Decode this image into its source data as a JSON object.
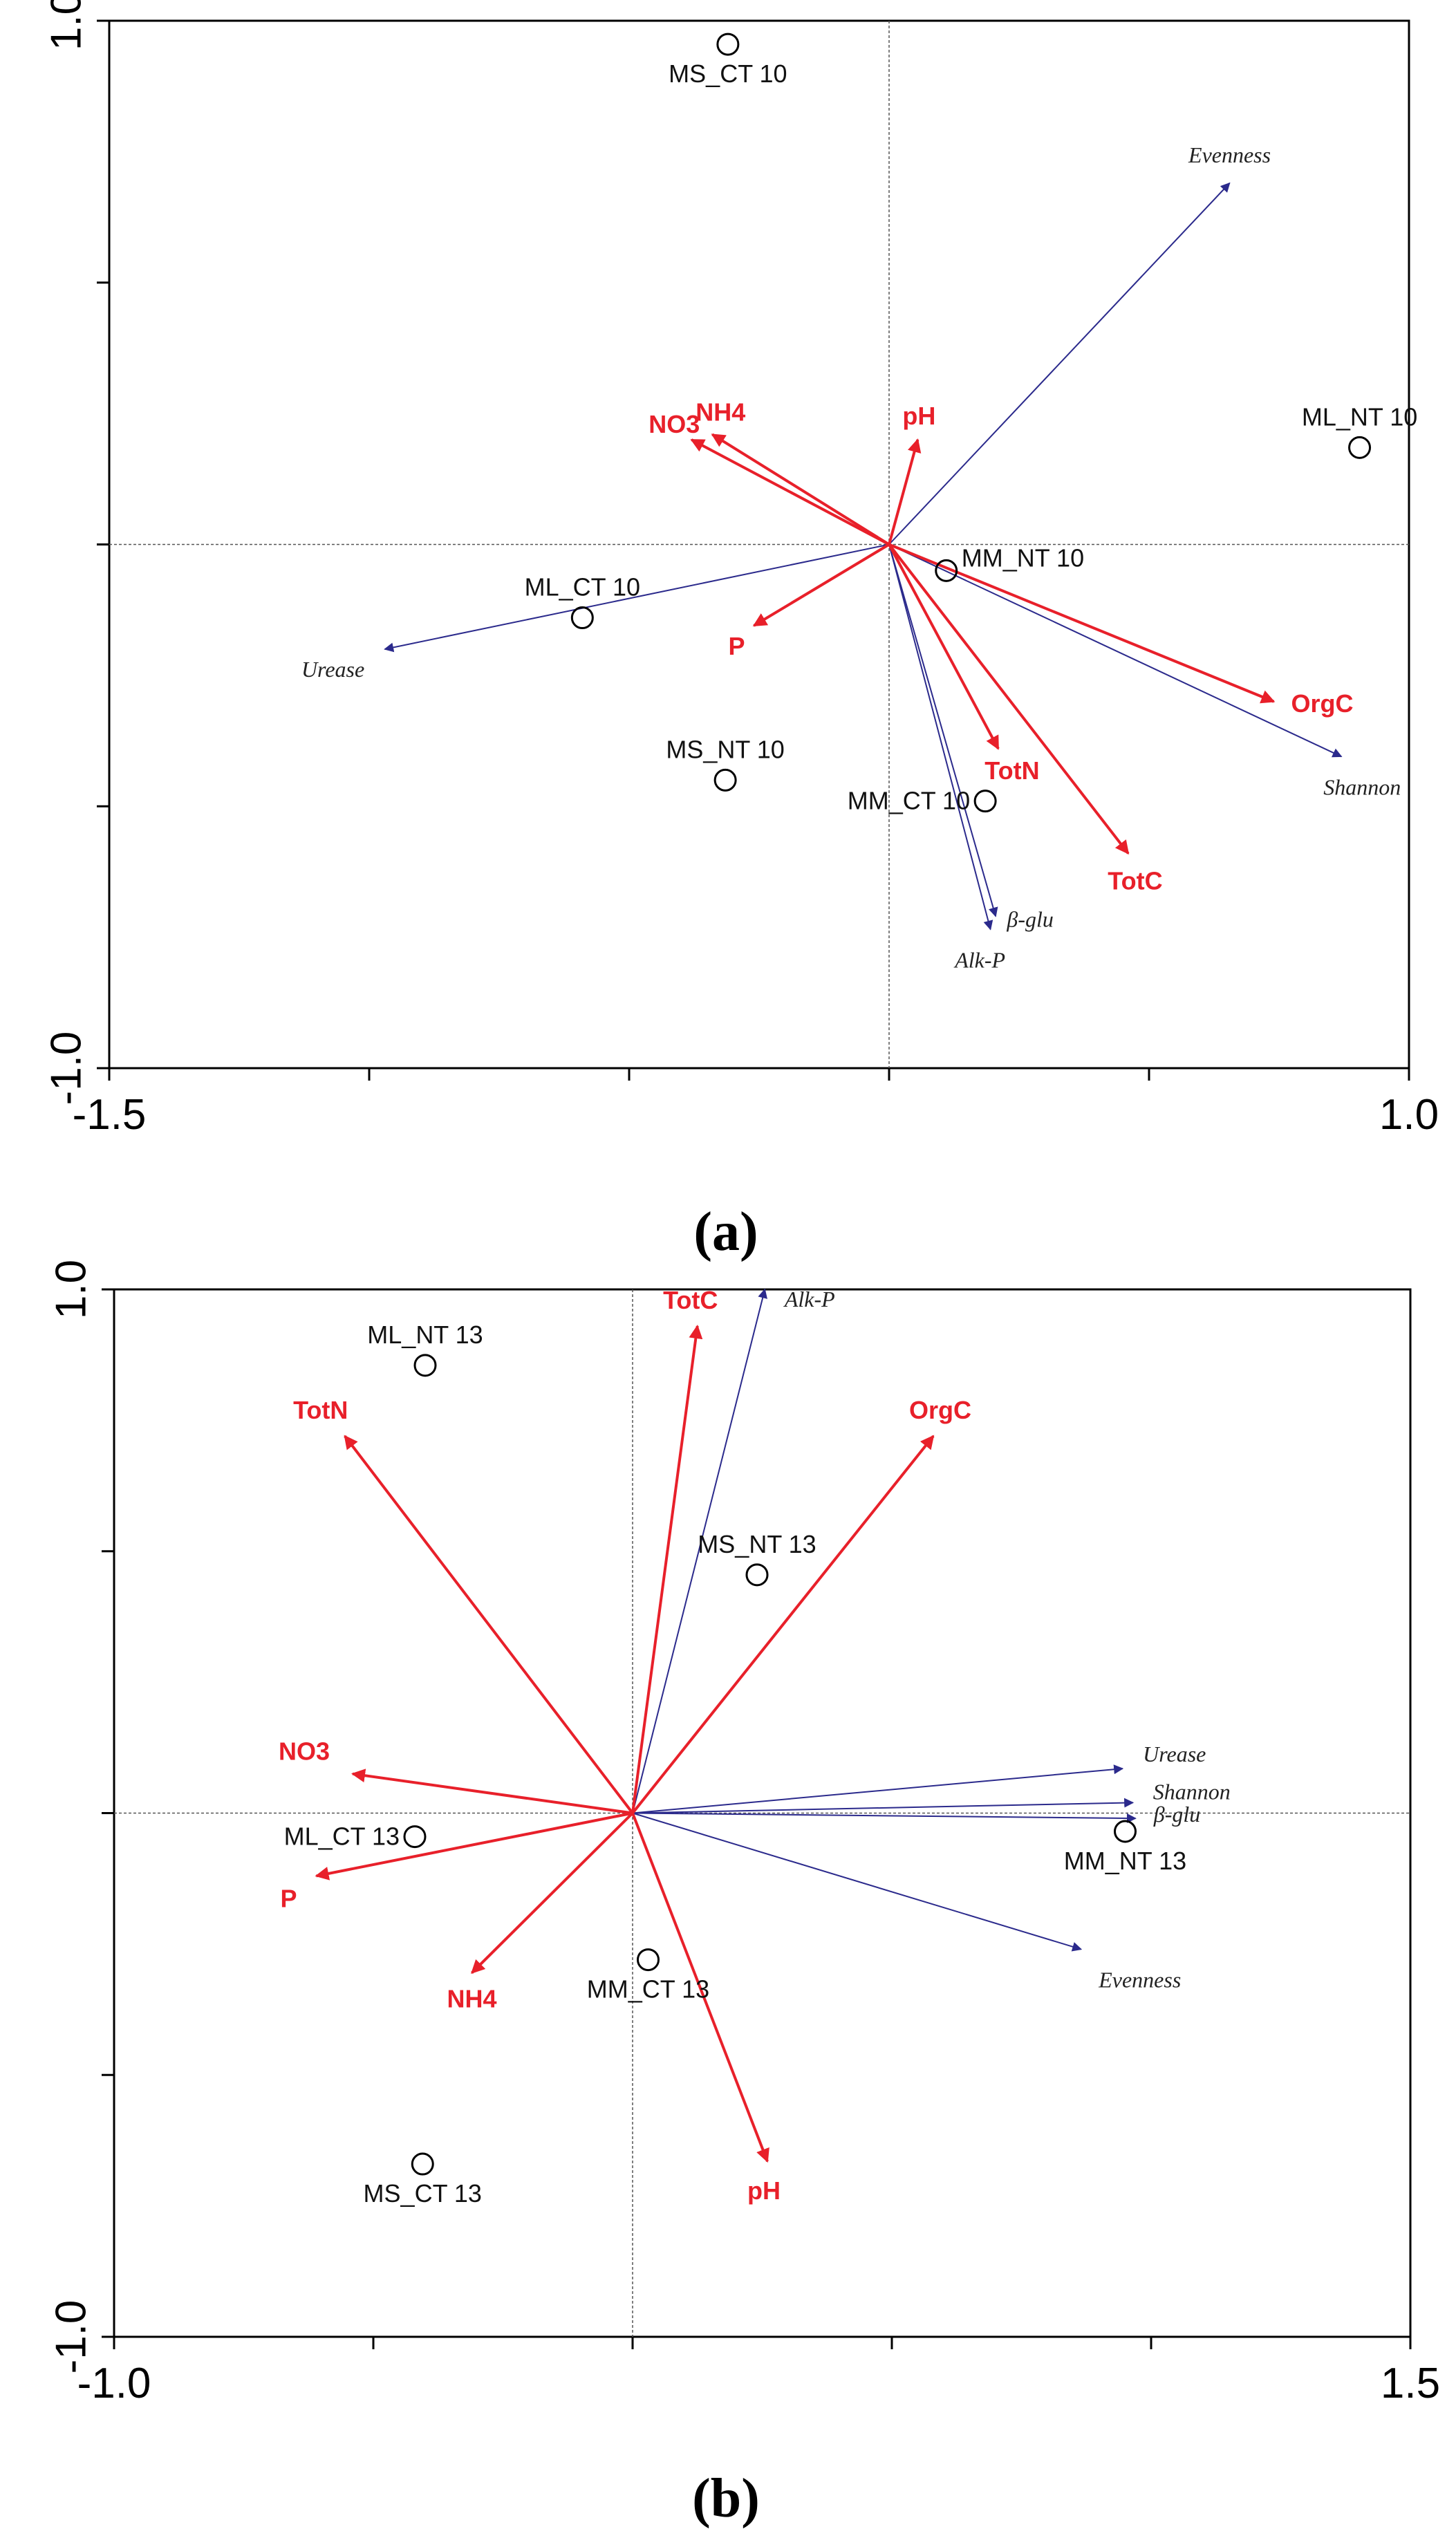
{
  "colors": {
    "env": "#e8202a",
    "bio": "#2b2a8c",
    "sample": "#000000"
  },
  "chart_data": [
    {
      "type": "scatter",
      "subtype": "ordination-biplot",
      "caption": "(a)",
      "caption_letter": "a",
      "xlim": [
        -1.5,
        1.0
      ],
      "ylim": [
        -1.0,
        1.0
      ],
      "xticks": [
        -1.5,
        -1.0,
        -0.5,
        0.0,
        0.5,
        1.0
      ],
      "yticks": [
        -1.0,
        -0.5,
        0.0,
        0.5,
        1.0
      ],
      "x_tick_labels": [
        {
          "value": -1.5,
          "text": "-1.5"
        },
        {
          "value": 1.0,
          "text": "1.0"
        }
      ],
      "y_tick_labels": [
        {
          "value": 1.0,
          "text": "1.0"
        },
        {
          "value": -1.0,
          "text": "-1.0"
        }
      ],
      "samples": [
        {
          "label": "MS_CT 10",
          "x": -0.31,
          "y": 0.955,
          "label_pos": "below"
        },
        {
          "label": "ML_NT 10",
          "x": 0.905,
          "y": 0.185,
          "label_pos": "above"
        },
        {
          "label": "MM_NT 10",
          "x": 0.11,
          "y": -0.05,
          "label_pos": "right"
        },
        {
          "label": "ML_CT 10",
          "x": -0.59,
          "y": -0.14,
          "label_pos": "above"
        },
        {
          "label": "MS_NT 10",
          "x": -0.315,
          "y": -0.45,
          "label_pos": "above"
        },
        {
          "label": "MM_CT 10",
          "x": 0.185,
          "y": -0.49,
          "label_pos": "left"
        }
      ],
      "env_vectors": [
        {
          "label": "NO3",
          "x": -0.38,
          "y": 0.2,
          "label_dx": -25,
          "label_dy": -10
        },
        {
          "label": "NH4",
          "x": -0.34,
          "y": 0.21,
          "label_dx": 12,
          "label_dy": -20
        },
        {
          "label": "pH",
          "x": 0.055,
          "y": 0.2,
          "label_dx": 2,
          "label_dy": -22
        },
        {
          "label": "P",
          "x": -0.26,
          "y": -0.155,
          "label_dx": -25,
          "label_dy": 42
        },
        {
          "label": "TotN",
          "x": 0.21,
          "y": -0.39,
          "label_dx": 20,
          "label_dy": 44
        },
        {
          "label": "TotC",
          "x": 0.46,
          "y": -0.59,
          "label_dx": 10,
          "label_dy": 52
        },
        {
          "label": "OrgC",
          "x": 0.74,
          "y": -0.3,
          "label_dx": 70,
          "label_dy": 15
        }
      ],
      "bio_vectors": [
        {
          "label": "Evenness",
          "x": 0.655,
          "y": 0.69,
          "label_dx": 0,
          "label_dy": -30
        },
        {
          "label": "Urease",
          "x": -0.97,
          "y": -0.2,
          "label_dx": -75,
          "label_dy": 40
        },
        {
          "label": "Shannon",
          "x": 0.87,
          "y": -0.405,
          "label_dx": 30,
          "label_dy": 55
        },
        {
          "label": "β-glu",
          "x": 0.205,
          "y": -0.71,
          "label_dx": 50,
          "label_dy": 15
        },
        {
          "label": "Alk-P",
          "x": 0.195,
          "y": -0.735,
          "label_dx": -15,
          "label_dy": 55
        }
      ]
    },
    {
      "type": "scatter",
      "subtype": "ordination-biplot",
      "caption": "(b)",
      "caption_letter": "b",
      "xlim": [
        -1.0,
        1.5
      ],
      "ylim": [
        -1.0,
        1.0
      ],
      "xticks": [
        -1.0,
        -0.5,
        0.0,
        0.5,
        1.0,
        1.5
      ],
      "yticks": [
        -1.0,
        -0.5,
        0.0,
        0.5,
        1.0
      ],
      "x_tick_labels": [
        {
          "value": -1.0,
          "text": "-1.0"
        },
        {
          "value": 1.5,
          "text": "1.5"
        }
      ],
      "y_tick_labels": [
        {
          "value": 1.0,
          "text": "1.0"
        },
        {
          "value": -1.0,
          "text": "-1.0"
        }
      ],
      "samples": [
        {
          "label": "ML_NT 13",
          "x": -0.4,
          "y": 0.855,
          "label_pos": "above"
        },
        {
          "label": "MS_NT 13",
          "x": 0.24,
          "y": 0.455,
          "label_pos": "above"
        },
        {
          "label": "ML_CT 13",
          "x": -0.42,
          "y": -0.045,
          "label_pos": "left"
        },
        {
          "label": "MM_NT 13",
          "x": 0.95,
          "y": -0.035,
          "label_pos": "below"
        },
        {
          "label": "MM_CT 13",
          "x": 0.03,
          "y": -0.28,
          "label_pos": "below"
        },
        {
          "label": "MS_CT 13",
          "x": -0.405,
          "y": -0.67,
          "label_pos": "below"
        }
      ],
      "env_vectors": [
        {
          "label": "TotC",
          "x": 0.125,
          "y": 0.93,
          "label_dx": -10,
          "label_dy": -25
        },
        {
          "label": "OrgC",
          "x": 0.58,
          "y": 0.72,
          "label_dx": 10,
          "label_dy": -25
        },
        {
          "label": "TotN",
          "x": -0.555,
          "y": 0.72,
          "label_dx": -35,
          "label_dy": -25
        },
        {
          "label": "NO3",
          "x": -0.54,
          "y": 0.075,
          "label_dx": -70,
          "label_dy": -20
        },
        {
          "label": "P",
          "x": -0.61,
          "y": -0.12,
          "label_dx": -40,
          "label_dy": 45
        },
        {
          "label": "NH4",
          "x": -0.31,
          "y": -0.305,
          "label_dx": 0,
          "label_dy": 50
        },
        {
          "label": "pH",
          "x": 0.26,
          "y": -0.665,
          "label_dx": -5,
          "label_dy": 55
        }
      ],
      "bio_vectors": [
        {
          "label": "Alk-P",
          "x": 0.255,
          "y": 1.0,
          "label_dx": 65,
          "label_dy": 25
        },
        {
          "label": "Urease",
          "x": 0.945,
          "y": 0.085,
          "label_dx": 75,
          "label_dy": -10
        },
        {
          "label": "Shannon",
          "x": 0.965,
          "y": 0.02,
          "label_dx": 85,
          "label_dy": -5
        },
        {
          "label": "β-glu",
          "x": 0.97,
          "y": -0.01,
          "label_dx": 60,
          "label_dy": 5
        },
        {
          "label": "Evenness",
          "x": 0.865,
          "y": -0.26,
          "label_dx": 85,
          "label_dy": 55
        }
      ]
    }
  ]
}
